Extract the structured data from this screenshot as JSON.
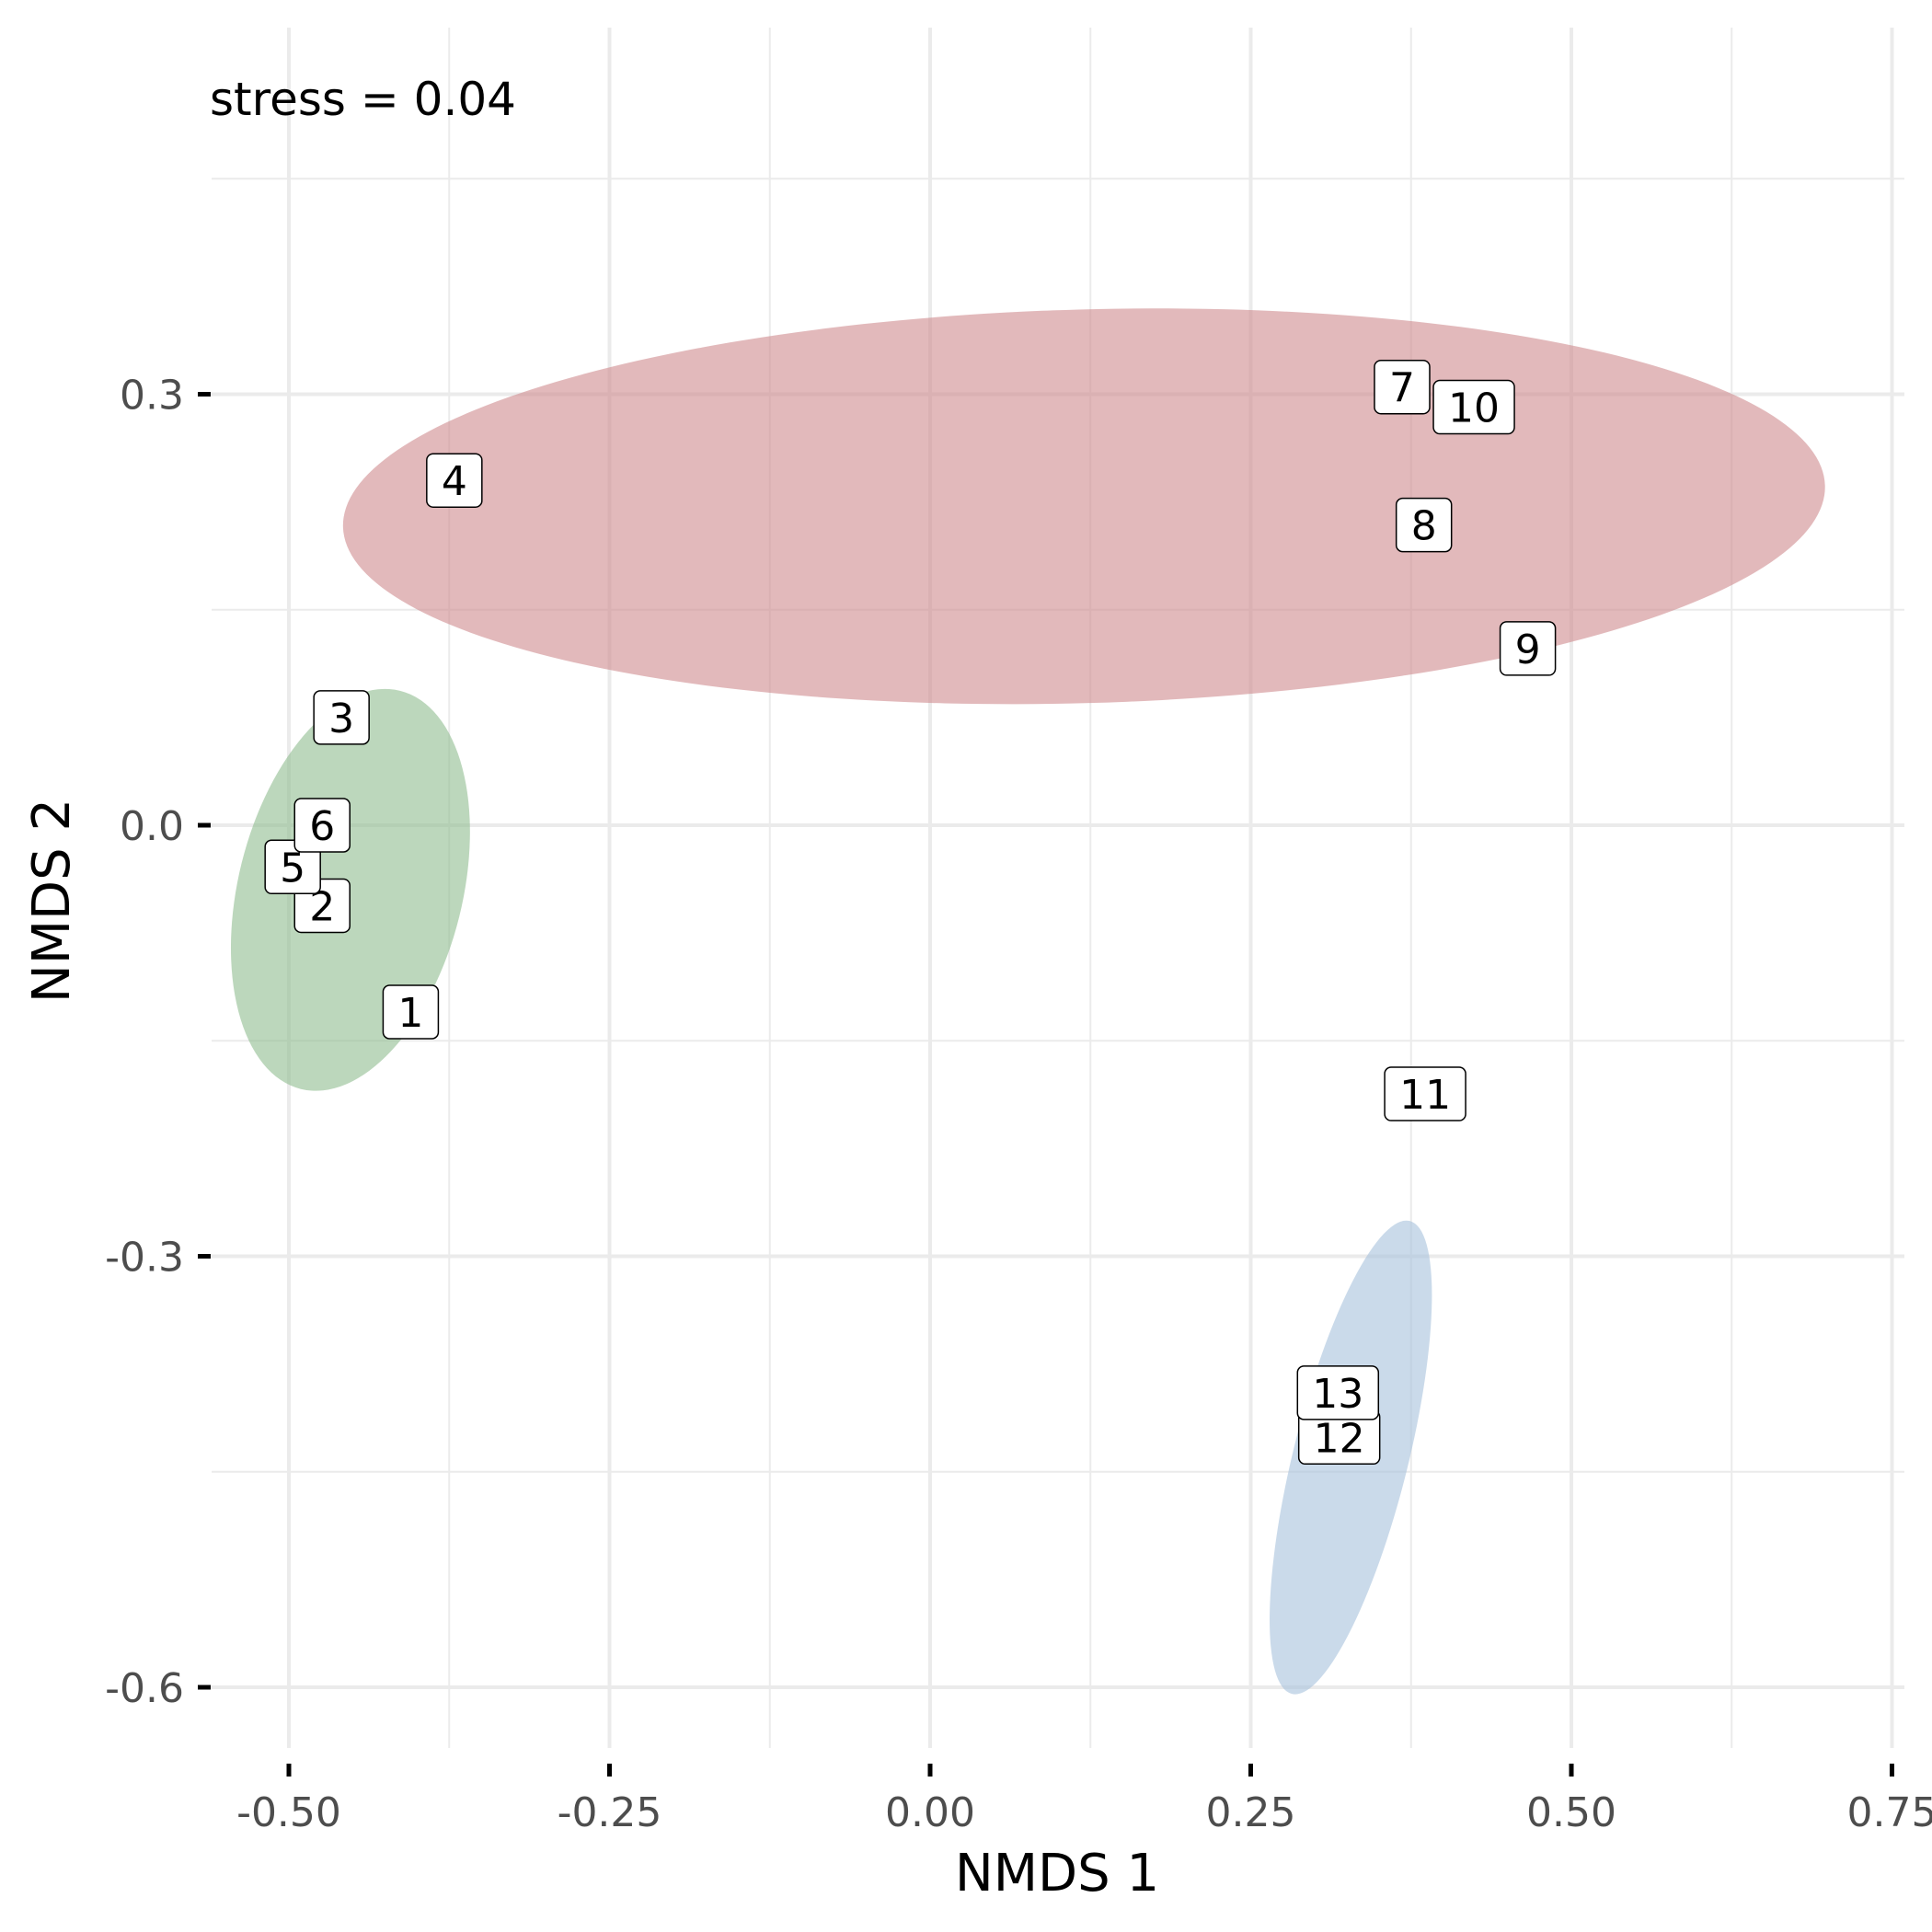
{
  "chart_data": {
    "type": "scatter",
    "title": "",
    "xlabel": "NMDS 1",
    "ylabel": "NMDS 2",
    "xlim": [
      -0.56,
      0.75
    ],
    "ylim": [
      -0.66,
      0.55
    ],
    "x_ticks": [
      -0.5,
      -0.25,
      0.0,
      0.25,
      0.5,
      0.75
    ],
    "x_tick_labels": [
      "-0.50",
      "-0.25",
      "0.00",
      "0.25",
      "0.50",
      "0.75"
    ],
    "y_ticks": [
      -0.6,
      -0.3,
      0.0,
      0.3
    ],
    "y_tick_labels": [
      "-0.6",
      "-0.3",
      "0.0",
      "0.3"
    ],
    "grid": true,
    "annotation": "stress =  0.04",
    "groups": [
      {
        "color": "#cf8a8d",
        "ellipse": {
          "cx": 0.12,
          "cy": 0.222,
          "rx": 0.578,
          "ry": 0.137,
          "angle_deg": -1.6
        }
      },
      {
        "color": "#8fbc8f",
        "ellipse": {
          "cx": -0.452,
          "cy": -0.045,
          "rx": 0.16,
          "ry": 0.078,
          "angle_deg": -76
        }
      },
      {
        "color": "#a6c1dc",
        "ellipse": {
          "cx": 0.328,
          "cy": -0.44,
          "rx": 0.19,
          "ry": 0.04,
          "angle_deg": -76
        }
      }
    ],
    "points": [
      {
        "label": "1",
        "x": -0.405,
        "y": -0.13,
        "group": 1
      },
      {
        "label": "2",
        "x": -0.474,
        "y": -0.056,
        "group": 1
      },
      {
        "label": "3",
        "x": -0.459,
        "y": 0.075,
        "group": 1
      },
      {
        "label": "4",
        "x": -0.371,
        "y": 0.24,
        "group": 0
      },
      {
        "label": "5",
        "x": -0.497,
        "y": -0.029,
        "group": 1
      },
      {
        "label": "6",
        "x": -0.474,
        "y": 0.0,
        "group": 1
      },
      {
        "label": "7",
        "x": 0.368,
        "y": 0.305,
        "group": 0
      },
      {
        "label": "8",
        "x": 0.385,
        "y": 0.209,
        "group": 0
      },
      {
        "label": "9",
        "x": 0.466,
        "y": 0.123,
        "group": 0
      },
      {
        "label": "10",
        "x": 0.424,
        "y": 0.291,
        "group": 0
      },
      {
        "label": "11",
        "x": 0.386,
        "y": -0.187,
        "group": 2
      },
      {
        "label": "12",
        "x": 0.319,
        "y": -0.426,
        "group": 2
      },
      {
        "label": "13",
        "x": 0.318,
        "y": -0.395,
        "group": 2
      }
    ]
  }
}
